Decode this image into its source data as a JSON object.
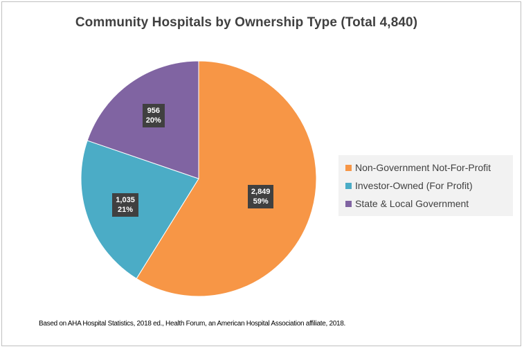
{
  "chart_data": {
    "type": "pie",
    "title": "Community Hospitals by Ownership Type (Total 4,840)",
    "slices": [
      {
        "name": "Non-Government Not-For-Profit",
        "value": 2849,
        "value_label": "2,849",
        "percent_label": "59%",
        "color": "#f79646"
      },
      {
        "name": "Investor-Owned (For Profit)",
        "value": 1035,
        "value_label": "1,035",
        "percent_label": "21%",
        "color": "#4bacc6"
      },
      {
        "name": "State & Local Government",
        "value": 956,
        "value_label": "956",
        "percent_label": "20%",
        "color": "#8064a2"
      }
    ],
    "legend_position": "right",
    "start_angle": "12 o'clock",
    "direction": "clockwise"
  },
  "footnote": "Based on AHA Hospital Statistics, 2018 ed., Health Forum, an American Hospital Association affiliate, 2018."
}
